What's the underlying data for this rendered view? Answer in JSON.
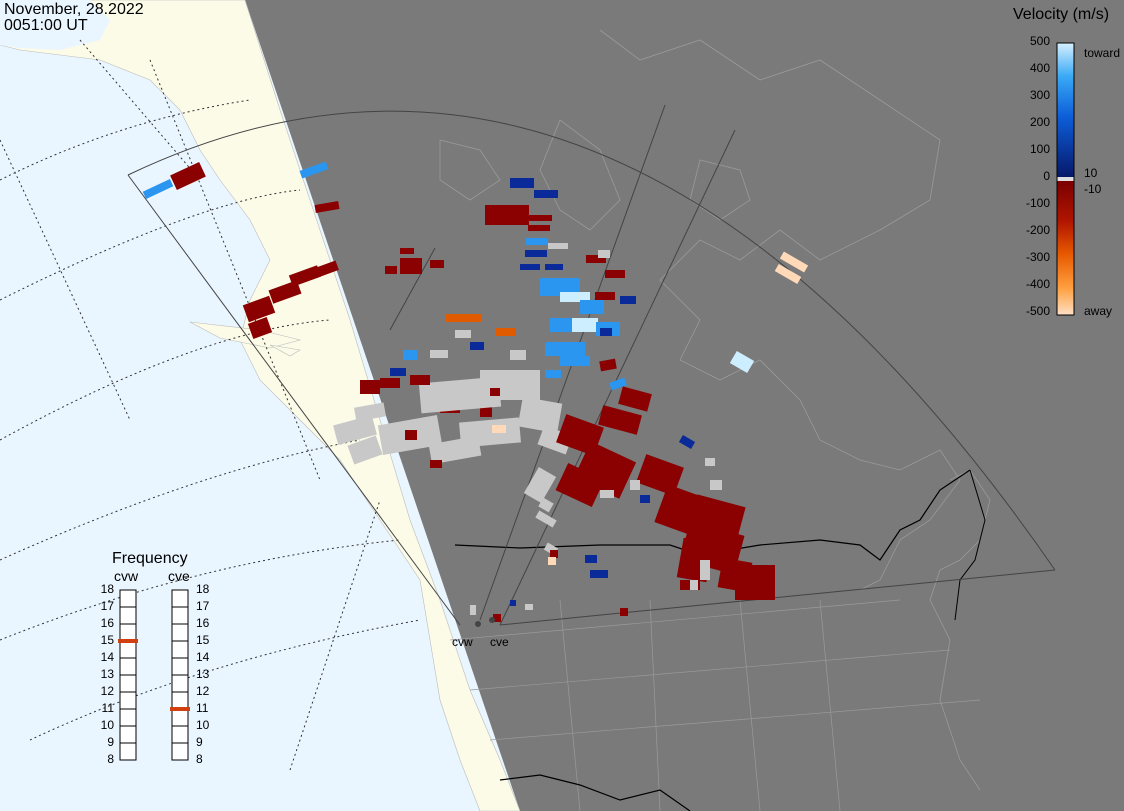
{
  "header": {
    "date": "November, 28.2022",
    "time": "0051:00 UT"
  },
  "legend": {
    "title": "Velocity (m/s)",
    "ticks": [
      "500",
      "400",
      "300",
      "200",
      "100",
      "0",
      "-100",
      "-200",
      "-300",
      "-400",
      "-500"
    ],
    "label_toward": "toward",
    "label_away": "away",
    "label_pos10": "10",
    "label_neg10": "-10",
    "colors": {
      "toward_light": "#cdeeff",
      "toward_mid": "#2a96f0",
      "toward_dark": "#0a2a99",
      "away_dark": "#8b0000",
      "away_mid": "#e05a00",
      "away_light": "#ffd9b8",
      "groundscatter": "#c8c8c8"
    }
  },
  "frequency": {
    "title": "Frequency",
    "radar_left": "cvw",
    "radar_right": "cve",
    "ticks": [
      "18",
      "17",
      "16",
      "15",
      "14",
      "13",
      "12",
      "11",
      "10",
      "9",
      "8"
    ],
    "cvw_freq_mhz": 15,
    "cve_freq_mhz": 11,
    "marker_color": "#d04010"
  },
  "radars": {
    "left": "cvw",
    "right": "cve"
  }
}
